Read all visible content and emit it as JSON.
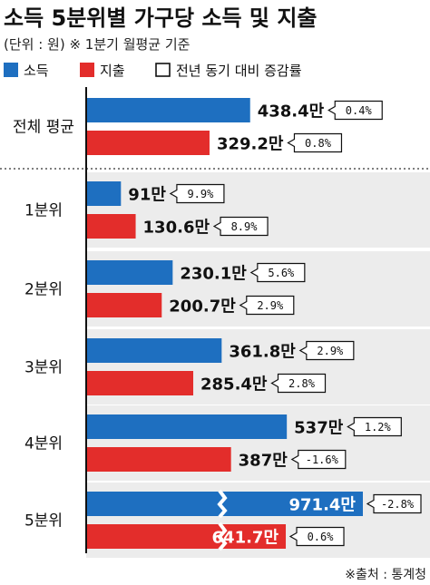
{
  "header": {
    "title": "소득 5분위별 가구당 소득 및 지출",
    "subtitle": "(단위 : 원) ※ 1분기 월평균 기준"
  },
  "legend": {
    "income": "소득",
    "spending": "지출",
    "change": "전년 동기 대비 증감률"
  },
  "colors": {
    "income": "#1e6fc0",
    "spending": "#e32d2b",
    "axis": "#111111",
    "grid": "#ececec"
  },
  "source": "※출처 : 통계청",
  "chart_data": {
    "type": "bar",
    "orientation": "horizontal",
    "categories": [
      "전체 평균",
      "1분위",
      "2분위",
      "3분위",
      "4분위",
      "5분위"
    ],
    "series": [
      {
        "name": "소득",
        "values": [
          438.4,
          91,
          230.1,
          361.8,
          537,
          971.4
        ],
        "labels": [
          "438.4만",
          "91만",
          "230.1만",
          "361.8만",
          "537만",
          "971.4만"
        ],
        "changes": [
          "0.4%",
          "9.9%",
          "5.6%",
          "2.9%",
          "1.2%",
          "-2.8%"
        ]
      },
      {
        "name": "지출",
        "values": [
          329.2,
          130.6,
          200.7,
          285.4,
          387,
          641.7
        ],
        "labels": [
          "329.2만",
          "130.6만",
          "200.7만",
          "285.4만",
          "387만",
          "641.7만"
        ],
        "changes": [
          "0.8%",
          "8.9%",
          "2.9%",
          "2.8%",
          "-1.6%",
          "0.6%"
        ]
      }
    ],
    "axis_break_category": "5분위",
    "grid": false,
    "legend_position": "top-left"
  }
}
